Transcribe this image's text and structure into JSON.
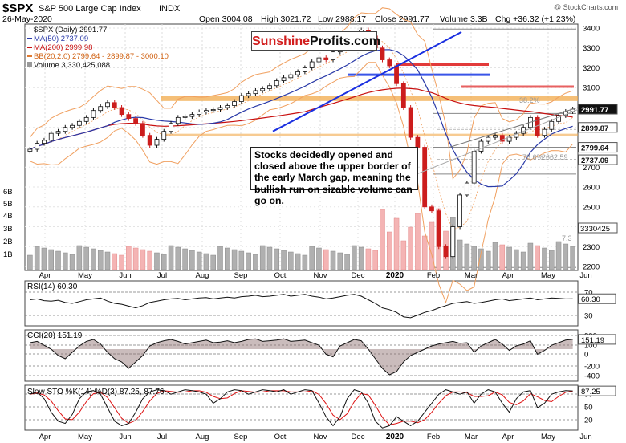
{
  "header": {
    "symbol": "$SPX",
    "name": "S&P 500 Large Cap Index",
    "exchange": "INDX",
    "date": "26-May-2020",
    "open": "Open 3004.08",
    "high": "High 3021.72",
    "low": "Low 2988.17",
    "close": "Close 2991.77",
    "volume": "Volume 3.3B",
    "change": "Chg +36.32 (+1.23%)",
    "watermark": "@ StockCharts.com"
  },
  "legend": {
    "price": "$SPX (Daily) 2991.77",
    "ma50": "MA(50) 2737.09",
    "ma200": "MA(200) 2999.98",
    "bb": "BB(20,2.0) 2799.64 - 2899.87 - 3000.10",
    "volume": "Volume 3,330,425,088"
  },
  "logo": {
    "part1": "Sunshine",
    "part2": "Profits.com"
  },
  "annotation": "Stocks decidedly opened and closed above the upper border of the early March gap, meaning the bullish run on sizable volume can go on.",
  "fib_labels": {
    "f382": "38.2%",
    "f786": "78.6%",
    "f786_val": "2662.59",
    "bottom": "7.3"
  },
  "colors": {
    "up": "#111111",
    "down": "#cc1d1d",
    "ma50": "#2a3aa8",
    "ma200": "#c81010",
    "bb": "#f0a060",
    "orange_zone": "#f2a94a",
    "blue_zone": "#3a55e8",
    "red_zone": "#e23a3a",
    "trend_blue": "#1a2fe0"
  },
  "chart_data": [
    {
      "type": "line",
      "panel": "price",
      "ylim": [
        2180,
        3420
      ],
      "yticks": [
        "3400",
        "3300",
        "3200",
        "3100",
        "2900",
        "2800",
        "2700",
        "2600",
        "2500",
        "2400",
        "2300",
        "2200"
      ],
      "badges": [
        {
          "label": "2991.77",
          "value": 2991.77,
          "style": "black"
        },
        {
          "label": "2899.87",
          "value": 2899.87,
          "style": "white"
        },
        {
          "label": "2799.64",
          "value": 2799.64,
          "style": "white"
        },
        {
          "label": "2737.09",
          "value": 2737.09,
          "style": "white"
        }
      ],
      "volume_labels": [
        "6B",
        "5B",
        "4B",
        "3B",
        "2B",
        "1B"
      ],
      "volume_badge": "3330425",
      "series": [
        {
          "name": "$SPX",
          "values": [
            2790,
            2820,
            2835,
            2870,
            2880,
            2900,
            2910,
            2930,
            2950,
            2985,
            3005,
            3025,
            3000,
            2965,
            2945,
            2920,
            2860,
            2810,
            2840,
            2880,
            2920,
            2950,
            2955,
            2965,
            2978,
            2985,
            2990,
            3000,
            3010,
            3030,
            3060,
            3070,
            3085,
            3095,
            3110,
            3135,
            3150,
            3165,
            3180,
            3200,
            3230,
            3250,
            3240,
            3280,
            3300,
            3330,
            3370,
            3390,
            3360,
            3300,
            3240,
            3210,
            3120,
            3000,
            2850,
            2800,
            2500,
            2480,
            2300,
            2250,
            2400,
            2560,
            2620,
            2780,
            2830,
            2850,
            2860,
            2830,
            2850,
            2870,
            2900,
            2950,
            2860,
            2890,
            2930,
            2960,
            2980,
            2991.77
          ]
        }
      ],
      "x_labels": [
        "Apr",
        "May",
        "Jun",
        "Jul",
        "Aug",
        "Sep",
        "Oct",
        "Nov",
        "Dec",
        "2020",
        "Feb",
        "Mar",
        "Apr",
        "May",
        "Jun"
      ]
    },
    {
      "type": "line",
      "panel": "rsi",
      "title": "RSI(14) 60.30",
      "value": 60.3,
      "yticks": [
        "70",
        "30"
      ],
      "badge": "60.30",
      "ylim": [
        0,
        100
      ],
      "values": [
        58,
        60,
        56,
        55,
        57,
        52,
        50,
        54,
        58,
        60,
        62,
        55,
        50,
        48,
        44,
        40,
        45,
        52,
        55,
        58,
        60,
        61,
        58,
        60,
        62,
        63,
        60,
        62,
        64,
        62,
        65,
        66,
        68,
        65,
        66,
        68,
        70,
        66,
        68,
        70,
        66,
        64,
        60,
        62,
        65,
        68,
        70,
        66,
        58,
        50,
        40,
        36,
        30,
        20,
        18,
        24,
        30,
        34,
        40,
        45,
        50,
        52,
        54,
        50,
        52,
        55,
        58,
        60,
        56,
        58,
        60,
        62,
        58,
        60,
        62,
        61,
        60,
        60.3
      ]
    },
    {
      "type": "line",
      "panel": "cci",
      "title": "CCI(20) 151.19",
      "value": 151.19,
      "yticks": [
        "200",
        "100",
        "0",
        "-200",
        "-400"
      ],
      "badge": "151.19",
      "ylim": [
        -500,
        300
      ],
      "values": [
        100,
        120,
        60,
        0,
        -100,
        -150,
        -50,
        50,
        120,
        150,
        80,
        -50,
        -150,
        -200,
        -300,
        -200,
        -100,
        50,
        100,
        130,
        150,
        120,
        80,
        100,
        120,
        140,
        100,
        110,
        130,
        100,
        120,
        150,
        160,
        120,
        130,
        140,
        160,
        120,
        130,
        140,
        100,
        60,
        -80,
        -120,
        50,
        100,
        150,
        130,
        0,
        -150,
        -300,
        -400,
        -350,
        -200,
        -100,
        -50,
        0,
        50,
        80,
        100,
        120,
        90,
        100,
        -50,
        50,
        100,
        150,
        80,
        -20,
        50,
        80,
        130,
        -80,
        -20,
        60,
        100,
        140,
        151.19
      ]
    },
    {
      "type": "line",
      "panel": "sto",
      "title": "Slow STO %K(14) %D(3) 87.25, 87.76",
      "k": 87.25,
      "d": 87.76,
      "yticks": [
        "80",
        "50",
        "20"
      ],
      "badge": "87.25",
      "ylim": [
        0,
        100
      ],
      "values": [
        80,
        85,
        70,
        40,
        20,
        15,
        35,
        70,
        85,
        88,
        80,
        50,
        20,
        10,
        15,
        40,
        70,
        85,
        90,
        88,
        80,
        85,
        90,
        88,
        85,
        80,
        60,
        70,
        85,
        90,
        88,
        80,
        85,
        90,
        88,
        85,
        90,
        80,
        85,
        90,
        88,
        60,
        30,
        10,
        30,
        70,
        90,
        85,
        60,
        20,
        5,
        10,
        30,
        20,
        10,
        20,
        40,
        60,
        80,
        90,
        85,
        80,
        85,
        60,
        80,
        90,
        85,
        60,
        40,
        70,
        85,
        88,
        50,
        60,
        80,
        85,
        88,
        87.25
      ]
    }
  ]
}
